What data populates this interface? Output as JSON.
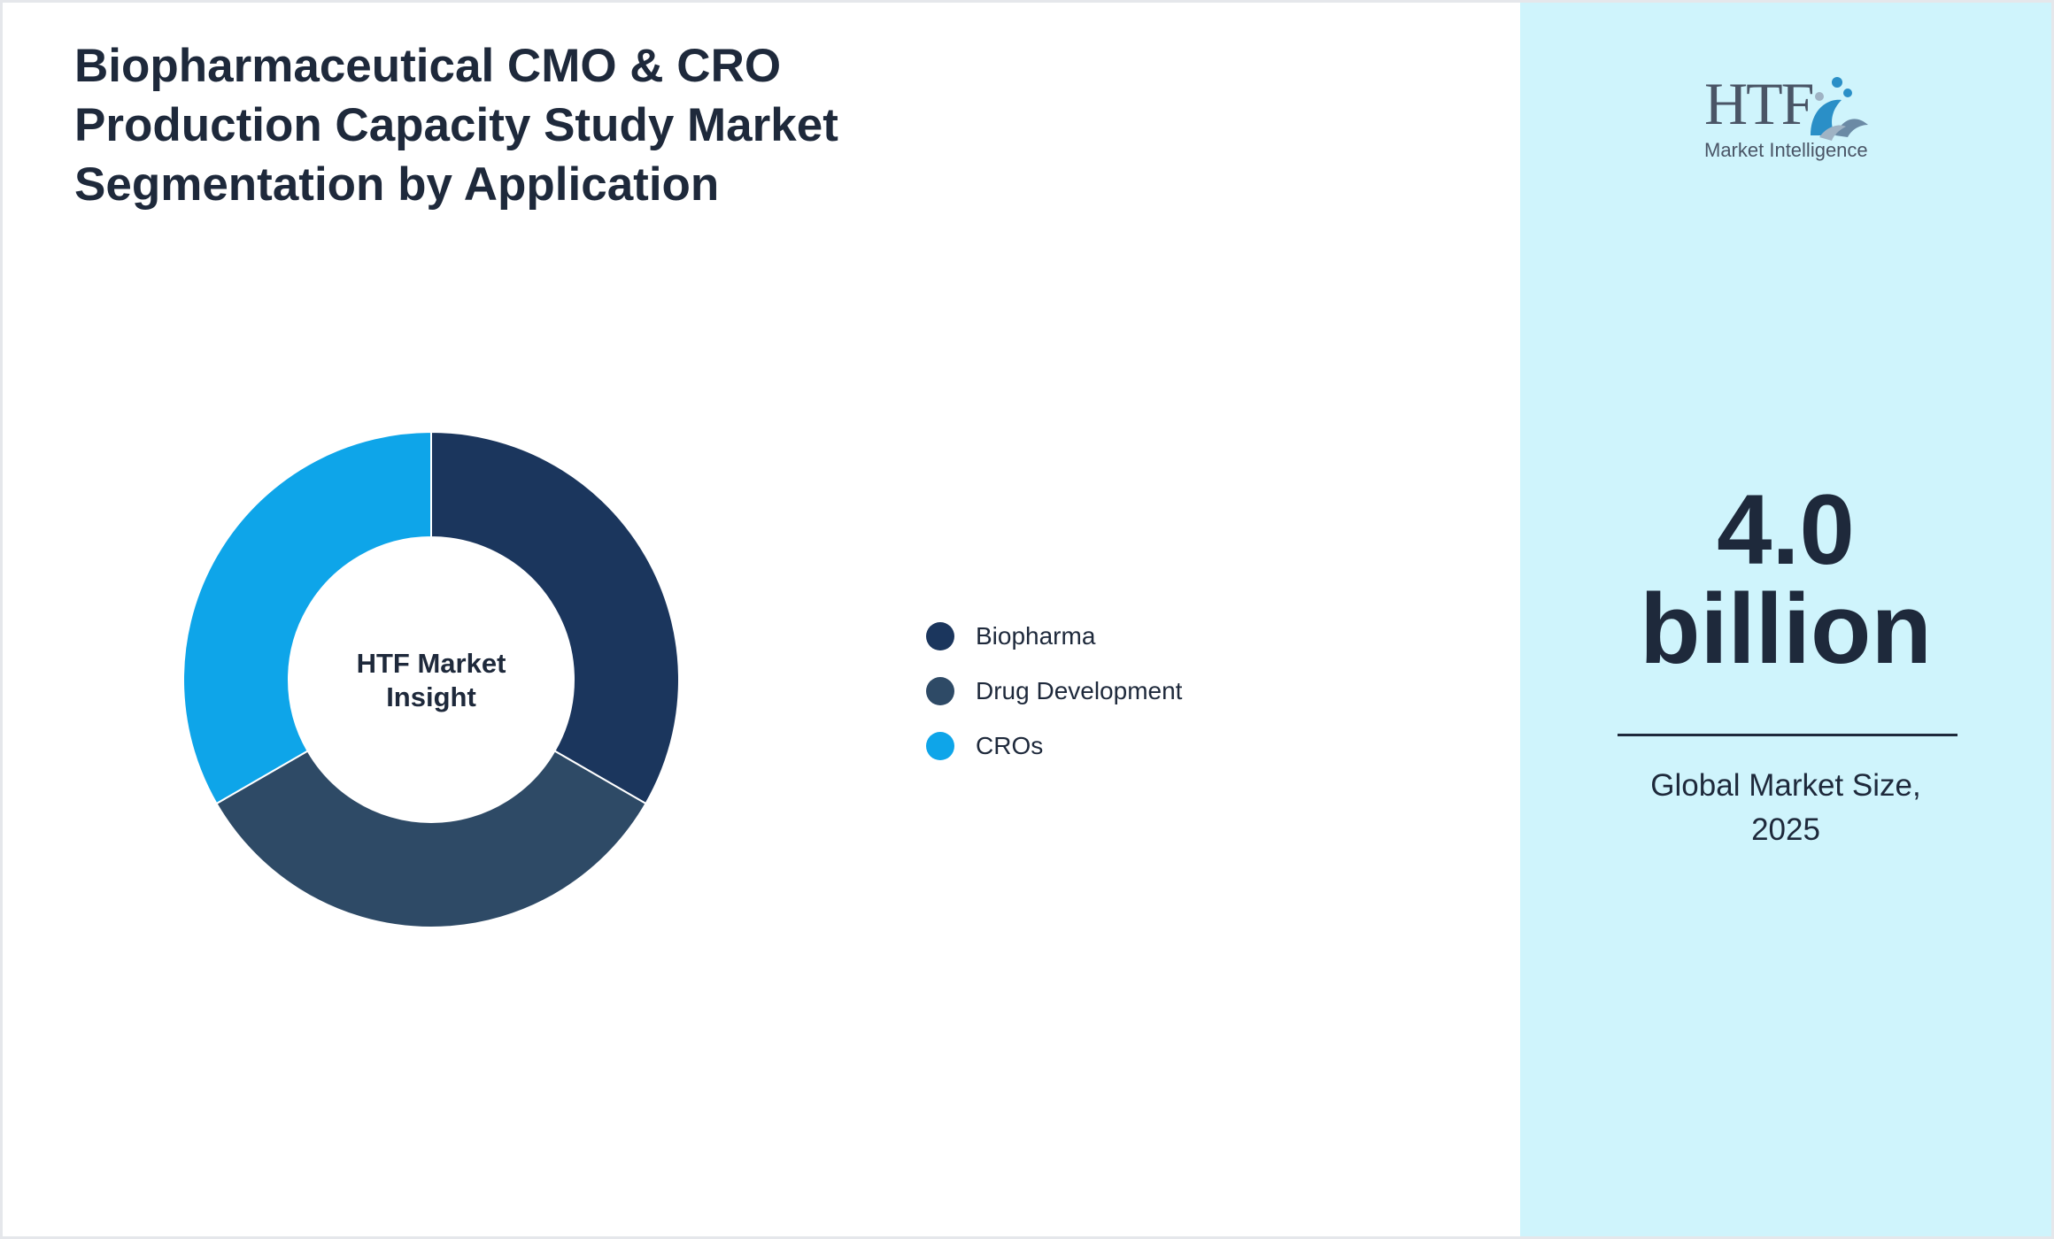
{
  "title": "Biopharmaceutical CMO & CRO Production Capacity Study Market Segmentation by Application",
  "chart_data": {
    "type": "pie",
    "variant": "donut",
    "center_label": "HTF Market\nInsight",
    "categories": [
      "Biopharma",
      "Drug Development",
      "CROs"
    ],
    "values": [
      33.3,
      33.3,
      33.3
    ],
    "colors": [
      "#1b365d",
      "#2e4a66",
      "#0ea5e9"
    ],
    "legend_position": "right"
  },
  "sidebar": {
    "logo": {
      "brand": "HTF",
      "tagline": "Market Intelligence"
    },
    "market_size_value": "4.0\nbillion",
    "market_size_caption": "Global Market Size,\n2025"
  }
}
